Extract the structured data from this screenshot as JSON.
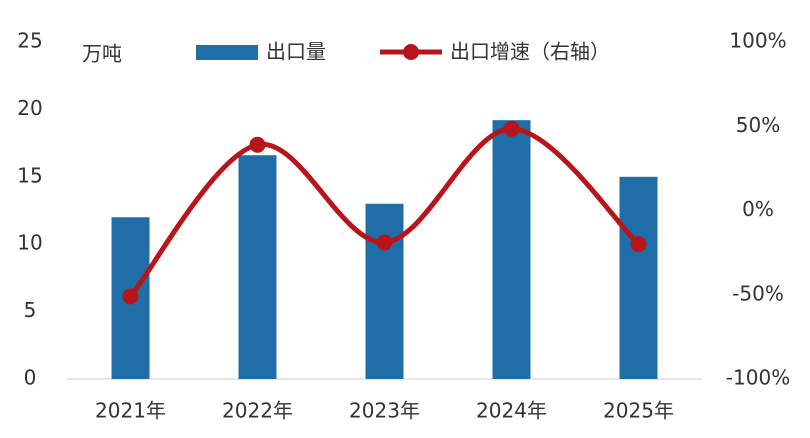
{
  "chart_data": {
    "type": "bar",
    "ylabel": "万吨",
    "categories": [
      "2021年",
      "2022年",
      "2023年",
      "2024年",
      "2025年"
    ],
    "series": [
      {
        "name": "出口量",
        "type": "bar",
        "color": "#1f6ea8",
        "values": [
          12.0,
          16.6,
          13.0,
          19.2,
          15.0
        ]
      },
      {
        "name": "出口增速（右轴）",
        "type": "line",
        "axis": "y2",
        "color": "#b8141a",
        "values": [
          -51,
          39,
          -19,
          48.5,
          -20
        ]
      }
    ],
    "ylim": [
      0,
      25
    ],
    "yticks": [
      0,
      5,
      10,
      15,
      20,
      25
    ],
    "y2lim": [
      -100,
      100
    ],
    "y2ticks": [
      {
        "value": -100,
        "label": "-100%"
      },
      {
        "value": -50,
        "label": "-50%"
      },
      {
        "value": 0,
        "label": "0%"
      },
      {
        "value": 50,
        "label": "50%"
      },
      {
        "value": 100,
        "label": "100%"
      }
    ],
    "grid": false,
    "legend": "top"
  }
}
